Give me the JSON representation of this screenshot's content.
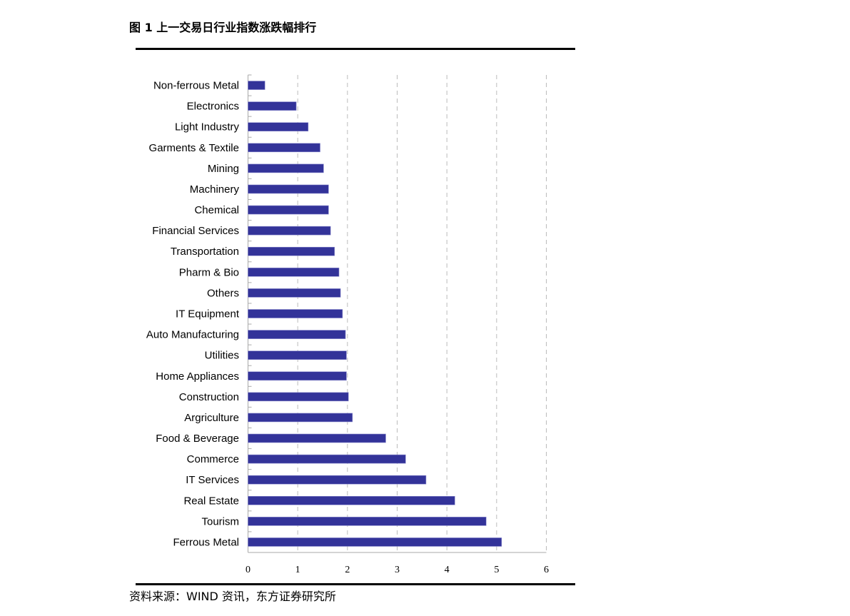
{
  "title": "图 1  上一交易日行业指数涨跌幅排行",
  "source": "资料来源：WIND 资讯，东方证券研究所",
  "chart_data": {
    "type": "bar",
    "orientation": "horizontal",
    "categories": [
      "Non-ferrous Metal",
      "Electronics",
      "Light Industry",
      "Garments & Textile",
      "Mining",
      "Machinery",
      "Chemical",
      "Financial Services",
      "Transportation",
      "Pharm & Bio",
      "Others",
      "IT Equipment",
      "Auto Manufacturing",
      "Utilities",
      "Home Appliances",
      "Construction",
      "Argriculture",
      "Food & Beverage",
      "Commerce",
      "IT Services",
      "Real Estate",
      "Tourism",
      "Ferrous Metal"
    ],
    "values": [
      0.34,
      0.97,
      1.21,
      1.45,
      1.52,
      1.62,
      1.62,
      1.66,
      1.74,
      1.83,
      1.86,
      1.9,
      1.96,
      1.98,
      1.98,
      2.02,
      2.1,
      2.77,
      3.17,
      3.58,
      4.16,
      4.79,
      5.1
    ],
    "xlim": [
      0,
      6
    ],
    "xticks": [
      "0",
      "1",
      "2",
      "3",
      "4",
      "5",
      "6"
    ],
    "grid": "vertical dashed",
    "bar_color": "#333399",
    "title": "",
    "xlabel": "",
    "ylabel": ""
  }
}
